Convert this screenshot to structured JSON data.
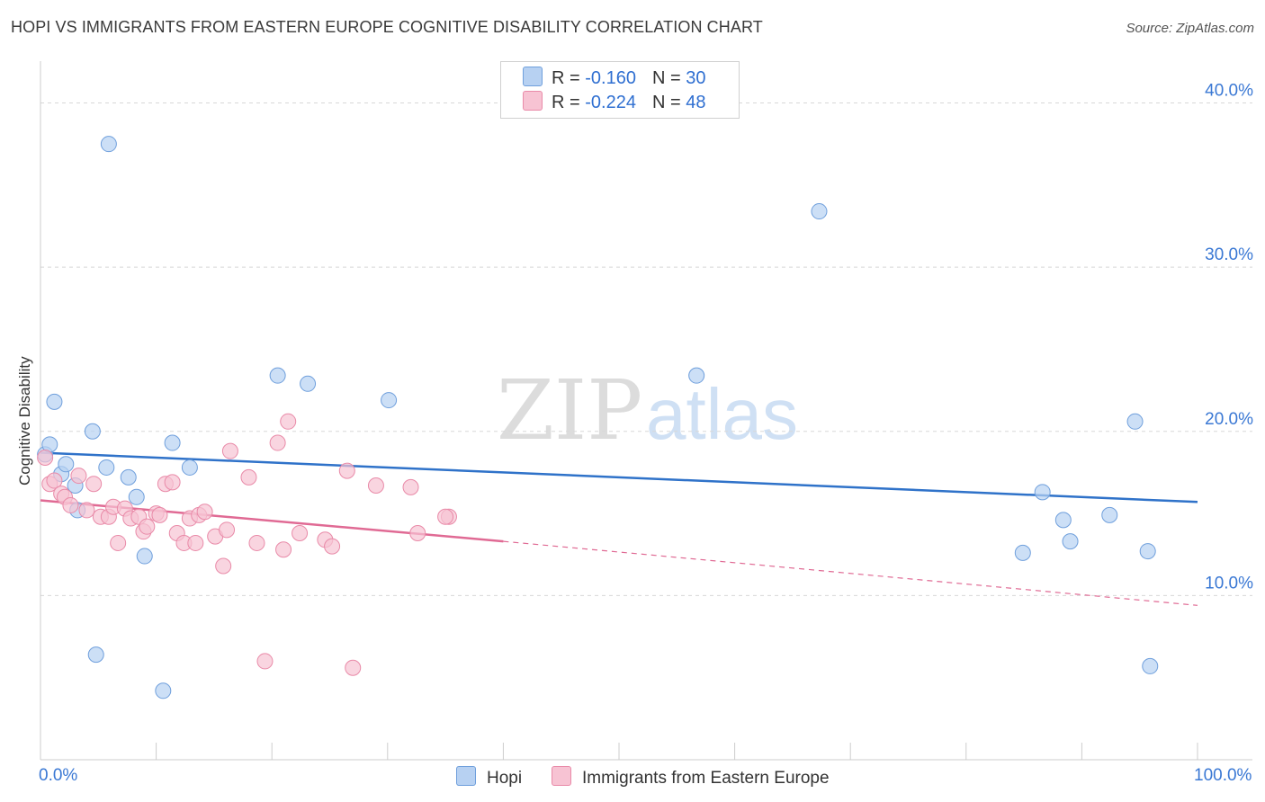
{
  "header": {
    "title": "HOPI VS IMMIGRANTS FROM EASTERN EUROPE COGNITIVE DISABILITY CORRELATION CHART",
    "source": "Source: ZipAtlas.com"
  },
  "watermark": {
    "part1": "ZIP",
    "part2": "atlas"
  },
  "legend": {
    "rows": [
      {
        "r_label": "R =",
        "r_value": "-0.160",
        "n_label": "N =",
        "n_value": "30"
      },
      {
        "r_label": "R =",
        "r_value": "-0.224",
        "n_label": "N =",
        "n_value": "48"
      }
    ]
  },
  "bottom_legend": {
    "hopi": "Hopi",
    "immigrants": "Immigrants from Eastern Europe"
  },
  "x_axis": {
    "min_label": "0.0%",
    "max_label": "100.0%"
  },
  "colors": {
    "hopi_fill": "#b7d1f2",
    "hopi_stroke": "#6f9fdc",
    "hopi_line": "#2f72c9",
    "imm_fill": "#f7c3d3",
    "imm_stroke": "#e98aa8",
    "imm_line": "#e06a94",
    "axis_text": "#3a78d4",
    "grid": "#d8d8d8"
  },
  "chart_data": {
    "type": "scatter",
    "title": "HOPI VS IMMIGRANTS FROM EASTERN EUROPE COGNITIVE DISABILITY CORRELATION CHART",
    "xlabel": "",
    "ylabel": "Cognitive Disability",
    "xlim": [
      0,
      100
    ],
    "ylim": [
      0,
      42
    ],
    "y_ticks": [
      {
        "value": 10,
        "label": "10.0%"
      },
      {
        "value": 20,
        "label": "20.0%"
      },
      {
        "value": 30,
        "label": "30.0%"
      },
      {
        "value": 40,
        "label": "40.0%"
      }
    ],
    "grid": true,
    "series": [
      {
        "name": "Hopi",
        "R": -0.16,
        "N": 30,
        "points": [
          [
            0.4,
            18.6
          ],
          [
            0.8,
            19.2
          ],
          [
            1.2,
            21.8
          ],
          [
            1.8,
            17.4
          ],
          [
            2.2,
            18.0
          ],
          [
            3.0,
            16.7
          ],
          [
            3.2,
            15.2
          ],
          [
            4.8,
            6.4
          ],
          [
            4.5,
            20.0
          ],
          [
            5.7,
            17.8
          ],
          [
            5.9,
            37.5
          ],
          [
            7.6,
            17.2
          ],
          [
            8.3,
            16.0
          ],
          [
            9.0,
            12.4
          ],
          [
            10.6,
            4.2
          ],
          [
            11.4,
            19.3
          ],
          [
            12.9,
            17.8
          ],
          [
            20.5,
            23.4
          ],
          [
            23.1,
            22.9
          ],
          [
            30.1,
            21.9
          ],
          [
            56.7,
            23.4
          ],
          [
            67.3,
            33.4
          ],
          [
            84.9,
            12.6
          ],
          [
            86.6,
            16.3
          ],
          [
            88.4,
            14.6
          ],
          [
            89.0,
            13.3
          ],
          [
            92.4,
            14.9
          ],
          [
            94.6,
            20.6
          ],
          [
            95.7,
            12.7
          ],
          [
            95.9,
            5.7
          ]
        ],
        "trend": {
          "x_start": 0,
          "y_start": 18.7,
          "x_end": 100,
          "y_end": 15.7,
          "style": "solid"
        }
      },
      {
        "name": "Immigrants from Eastern Europe",
        "R": -0.224,
        "N": 48,
        "points": [
          [
            0.4,
            18.4
          ],
          [
            0.8,
            16.8
          ],
          [
            1.2,
            17.0
          ],
          [
            1.8,
            16.2
          ],
          [
            2.1,
            16.0
          ],
          [
            2.6,
            15.5
          ],
          [
            3.3,
            17.3
          ],
          [
            4.0,
            15.2
          ],
          [
            4.6,
            16.8
          ],
          [
            5.2,
            14.8
          ],
          [
            5.9,
            14.8
          ],
          [
            6.3,
            15.4
          ],
          [
            6.7,
            13.2
          ],
          [
            7.3,
            15.3
          ],
          [
            7.8,
            14.7
          ],
          [
            8.5,
            14.8
          ],
          [
            8.9,
            13.9
          ],
          [
            9.2,
            14.2
          ],
          [
            10.0,
            15.0
          ],
          [
            10.3,
            14.9
          ],
          [
            10.8,
            16.8
          ],
          [
            11.4,
            16.9
          ],
          [
            11.8,
            13.8
          ],
          [
            12.4,
            13.2
          ],
          [
            12.9,
            14.7
          ],
          [
            13.4,
            13.2
          ],
          [
            13.7,
            14.9
          ],
          [
            14.2,
            15.1
          ],
          [
            15.1,
            13.6
          ],
          [
            15.8,
            11.8
          ],
          [
            16.1,
            14.0
          ],
          [
            16.4,
            18.8
          ],
          [
            18.0,
            17.2
          ],
          [
            18.7,
            13.2
          ],
          [
            19.4,
            6.0
          ],
          [
            20.5,
            19.3
          ],
          [
            21.0,
            12.8
          ],
          [
            21.4,
            20.6
          ],
          [
            22.4,
            13.8
          ],
          [
            24.6,
            13.4
          ],
          [
            25.2,
            13.0
          ],
          [
            26.5,
            17.6
          ],
          [
            27.0,
            5.6
          ],
          [
            29.0,
            16.7
          ],
          [
            32.0,
            16.6
          ],
          [
            32.6,
            13.8
          ],
          [
            35.3,
            14.8
          ],
          [
            35.0,
            14.8
          ]
        ],
        "trend": {
          "x_start": 0,
          "y_start": 15.8,
          "x_solid_end": 40,
          "y_solid_end": 13.3,
          "x_end": 100,
          "y_end": 9.4,
          "style": "solid-then-dashed"
        }
      }
    ]
  }
}
